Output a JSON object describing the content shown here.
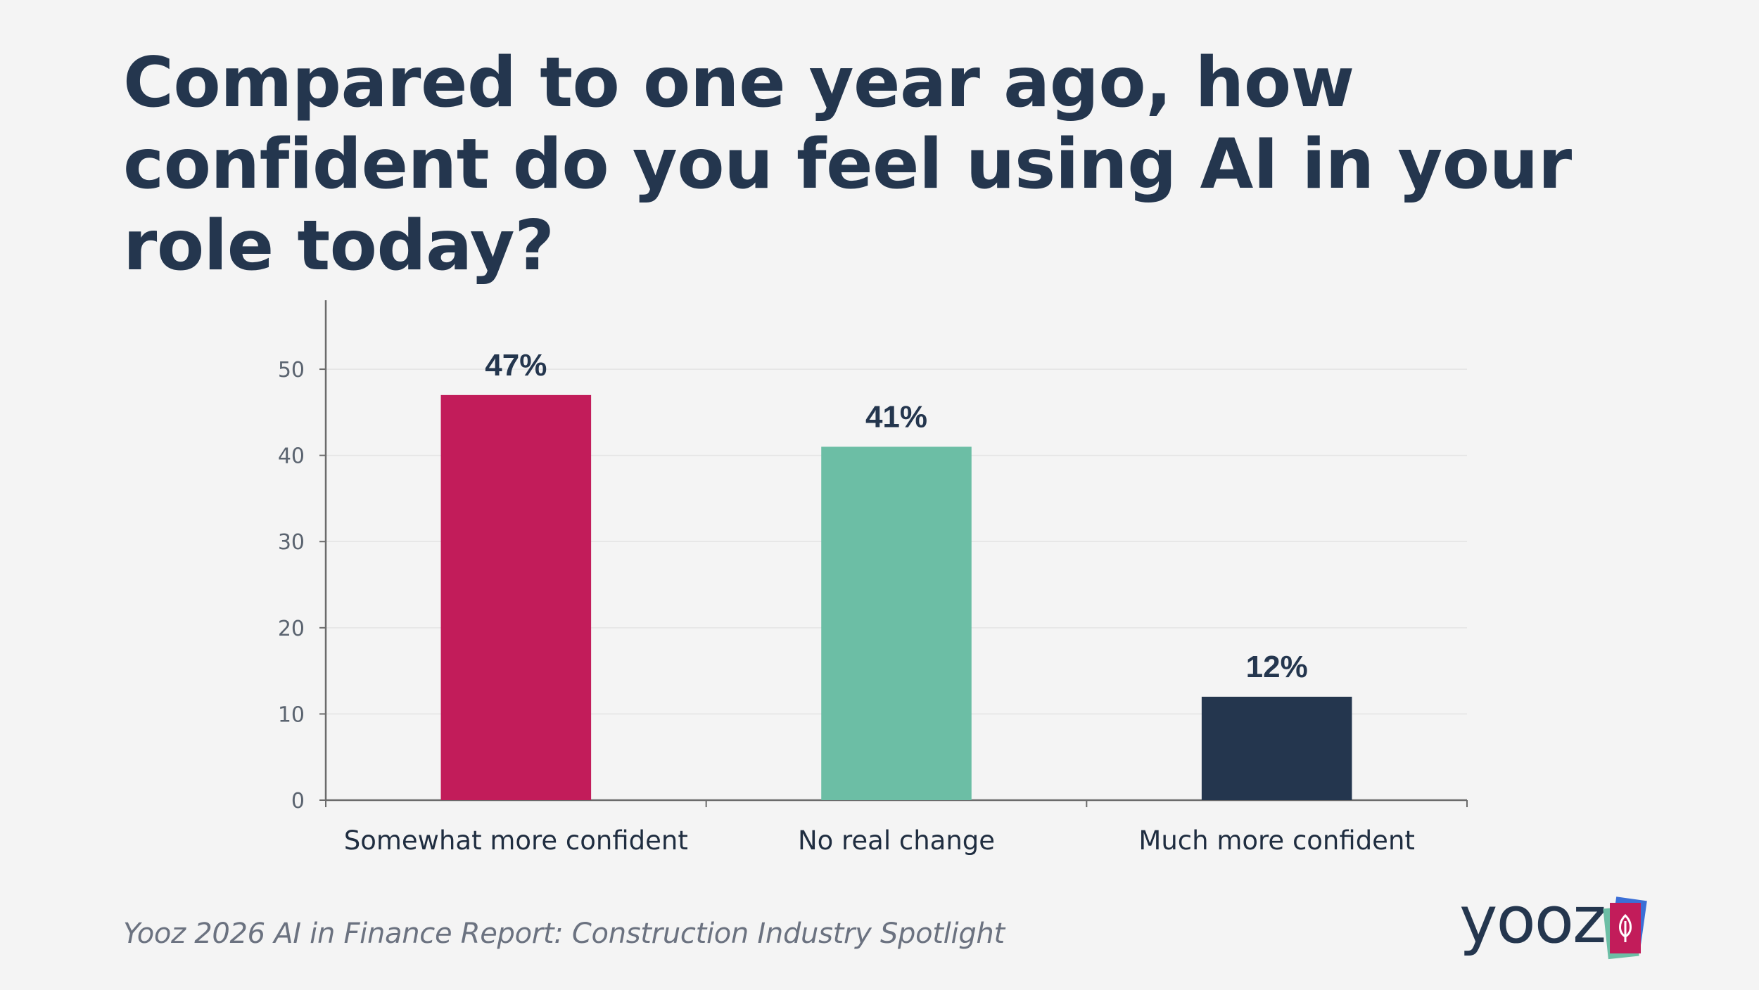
{
  "title": "Compared to one year ago, how confident do you feel using AI in your role today?",
  "footer": "Yooz 2026 AI in Finance Report: Construction Industry Spotlight",
  "logo": {
    "text": "yooz",
    "icon": "leaf-book-icon"
  },
  "colors": {
    "series": [
      "#c21c5a",
      "#6cbea5",
      "#24364e"
    ],
    "text": "#24364e"
  },
  "chart_data": {
    "type": "bar",
    "title": "Compared to one year ago, how confident do you feel using AI in your role today?",
    "categories": [
      "Somewhat more confident",
      "No real change",
      "Much more confident"
    ],
    "values": [
      47,
      41,
      12
    ],
    "data_labels": [
      "47%",
      "41%",
      "12%"
    ],
    "yticks": [
      0,
      10,
      20,
      30,
      40,
      50
    ],
    "ylim": [
      0,
      58
    ],
    "xlabel": "",
    "ylabel": "",
    "grid": true
  }
}
